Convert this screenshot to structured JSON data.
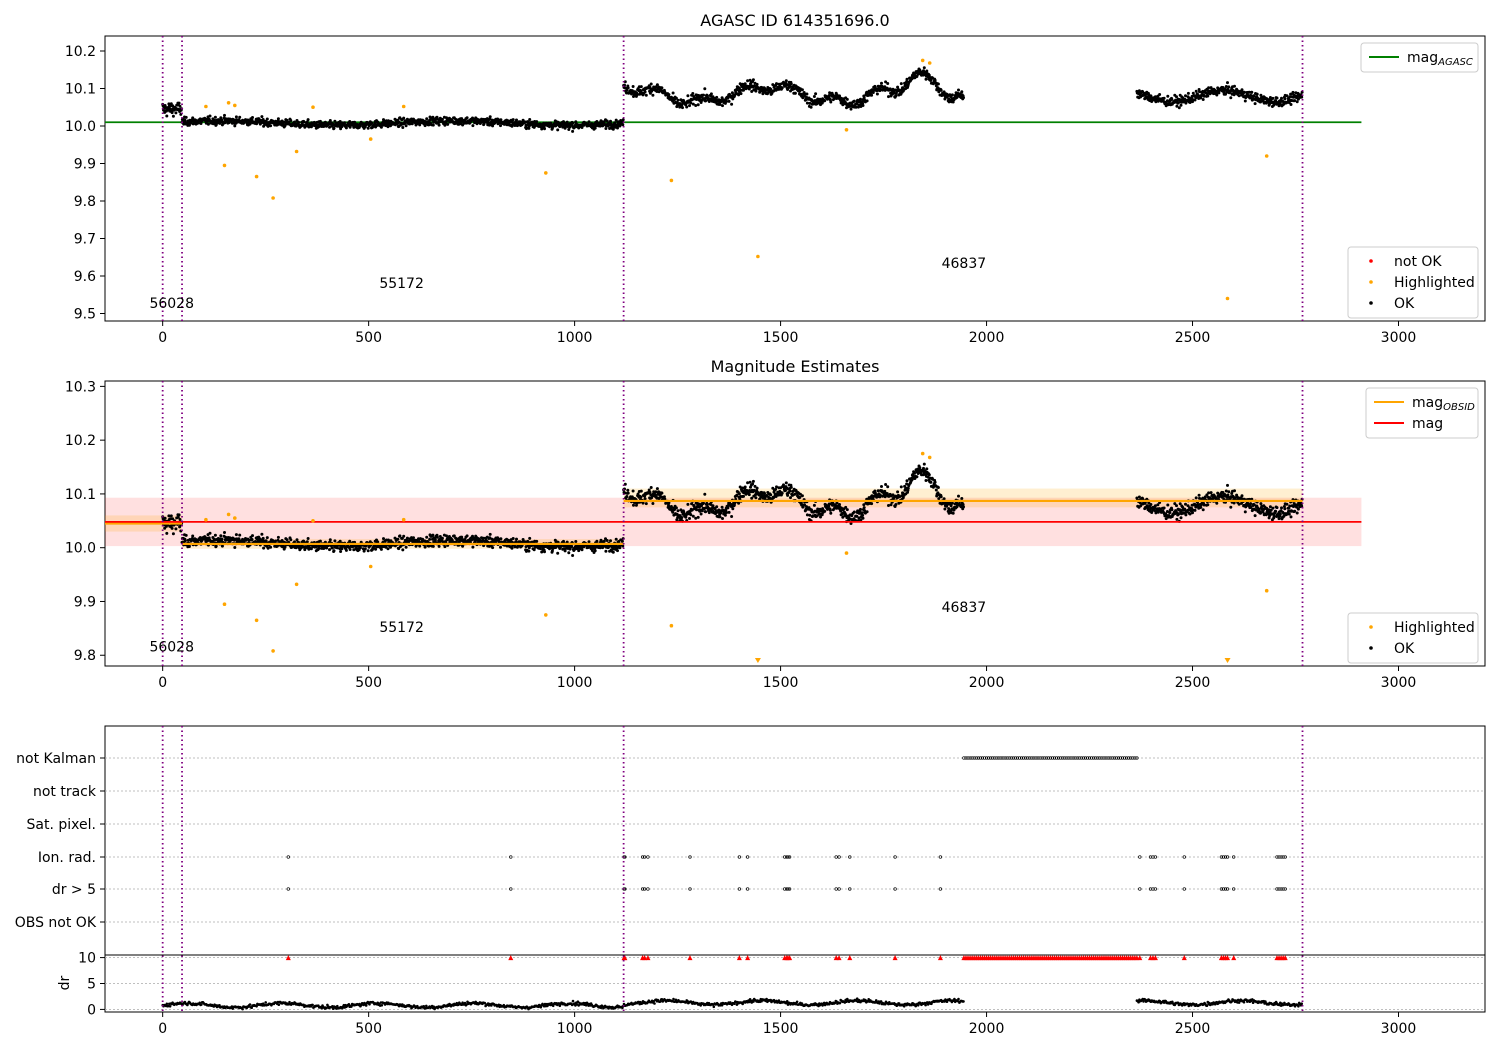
{
  "chart_data": [
    {
      "panel": "agasc",
      "type": "scatter",
      "title": "AGASC ID 614351696.0",
      "xlim": [
        -140,
        3210
      ],
      "ylim": [
        9.48,
        10.24
      ],
      "xticks": [
        0,
        500,
        1000,
        1500,
        2000,
        2500,
        3000
      ],
      "yticks": [
        9.5,
        9.6,
        9.7,
        9.8,
        9.9,
        10.0,
        10.1,
        10.2
      ],
      "ytick_labels": [
        "9.5",
        "9.6",
        "9.7",
        "9.8",
        "9.9",
        "10.0",
        "10.1",
        "10.2"
      ],
      "obsid_boundaries": [
        0,
        47,
        1119,
        2767
      ],
      "obsid_labels": [
        {
          "text": "56028",
          "x": 22,
          "y": 9.515
        },
        {
          "text": "55172",
          "x": 580,
          "y": 9.568
        },
        {
          "text": "46837",
          "x": 1945,
          "y": 9.622
        }
      ],
      "mag_agasc": {
        "value": 10.01,
        "x": [
          -140,
          2910
        ],
        "color": "#008000"
      },
      "legend_top": [
        {
          "label": "mag",
          "sub": "AGASC",
          "color": "#008000",
          "kind": "line"
        }
      ],
      "legend_bottom": [
        {
          "label": "not OK",
          "color": "#ff0000",
          "kind": "dot"
        },
        {
          "label": "Highlighted",
          "color": "#ffa500",
          "kind": "dot"
        },
        {
          "label": "OK",
          "color": "#000000",
          "kind": "dot"
        }
      ],
      "highlighted": [
        {
          "x": 105,
          "y": 10.052
        },
        {
          "x": 150,
          "y": 9.895
        },
        {
          "x": 160,
          "y": 10.062
        },
        {
          "x": 175,
          "y": 10.055
        },
        {
          "x": 228,
          "y": 9.865
        },
        {
          "x": 268,
          "y": 9.808
        },
        {
          "x": 325,
          "y": 9.932
        },
        {
          "x": 365,
          "y": 10.05
        },
        {
          "x": 505,
          "y": 9.965
        },
        {
          "x": 585,
          "y": 10.052
        },
        {
          "x": 930,
          "y": 9.875
        },
        {
          "x": 1235,
          "y": 9.855
        },
        {
          "x": 1445,
          "y": 9.652
        },
        {
          "x": 1660,
          "y": 9.99
        },
        {
          "x": 1845,
          "y": 10.175
        },
        {
          "x": 1862,
          "y": 10.168
        },
        {
          "x": 2585,
          "y": 9.54
        },
        {
          "x": 2680,
          "y": 9.92
        }
      ]
    },
    {
      "panel": "estimates",
      "type": "scatter",
      "title": "Magnitude Estimates",
      "xlim": [
        -140,
        3210
      ],
      "ylim": [
        9.78,
        10.31
      ],
      "xticks": [
        0,
        500,
        1000,
        1500,
        2000,
        2500,
        3000
      ],
      "yticks": [
        9.8,
        9.9,
        10.0,
        10.1,
        10.2,
        10.3
      ],
      "ytick_labels": [
        "9.8",
        "9.9",
        "10.0",
        "10.1",
        "10.2",
        "10.3"
      ],
      "obsid_boundaries": [
        0,
        47,
        1119,
        2767
      ],
      "obsid_labels": [
        {
          "text": "56028",
          "x": 22,
          "y": 9.807
        },
        {
          "text": "55172",
          "x": 580,
          "y": 9.843
        },
        {
          "text": "46837",
          "x": 1945,
          "y": 9.88
        }
      ],
      "mag": {
        "value": 10.048,
        "band": [
          10.003,
          10.093
        ],
        "x": [
          -140,
          2910
        ],
        "color": "#ff0000"
      },
      "mag_obsid": [
        {
          "x": [
            -140,
            47
          ],
          "value": 10.045,
          "band": [
            10.03,
            10.06
          ]
        },
        {
          "x": [
            47,
            1119
          ],
          "value": 10.007,
          "band": [
            9.998,
            10.016
          ]
        },
        {
          "x": [
            1119,
            2767
          ],
          "value": 10.087,
          "band": [
            10.075,
            10.11
          ]
        }
      ],
      "legend_top": [
        {
          "label": "mag",
          "sub": "OBSID",
          "color": "#ffa500",
          "kind": "line"
        },
        {
          "label": "mag",
          "sub": "",
          "color": "#ff0000",
          "kind": "line"
        }
      ],
      "legend_bottom": [
        {
          "label": "Highlighted",
          "color": "#ffa500",
          "kind": "dot"
        },
        {
          "label": "OK",
          "color": "#000000",
          "kind": "dot"
        }
      ],
      "highlighted": [
        {
          "x": 105,
          "y": 10.052
        },
        {
          "x": 150,
          "y": 9.895
        },
        {
          "x": 160,
          "y": 10.062
        },
        {
          "x": 175,
          "y": 10.055
        },
        {
          "x": 228,
          "y": 9.865
        },
        {
          "x": 268,
          "y": 9.808
        },
        {
          "x": 325,
          "y": 9.932
        },
        {
          "x": 365,
          "y": 10.05
        },
        {
          "x": 505,
          "y": 9.965
        },
        {
          "x": 585,
          "y": 10.052
        },
        {
          "x": 930,
          "y": 9.875
        },
        {
          "x": 1235,
          "y": 9.855
        },
        {
          "x": 1660,
          "y": 9.99
        },
        {
          "x": 1845,
          "y": 10.175
        },
        {
          "x": 1862,
          "y": 10.168
        },
        {
          "x": 2680,
          "y": 9.92
        }
      ],
      "below_range_markers": [
        1445,
        2585
      ]
    },
    {
      "panel": "flags",
      "type": "scatter",
      "xlim": [
        -140,
        3210
      ],
      "xticks": [
        0,
        500,
        1000,
        1500,
        2000,
        2500,
        3000
      ],
      "obsid_boundaries": [
        0,
        47,
        1119,
        2767
      ],
      "flag_rows": [
        "not Kalman",
        "not track",
        "Sat. pixel.",
        "Ion. rad.",
        "dr > 5",
        "OBS not OK"
      ],
      "not_kalman_range": [
        1945,
        2365
      ],
      "flag_times": [
        305,
        845,
        1120,
        1122,
        1165,
        1170,
        1178,
        1280,
        1400,
        1420,
        1510,
        1515,
        1518,
        1522,
        1635,
        1642,
        1668,
        1778,
        1888,
        2372,
        2398,
        2404,
        2410,
        2480,
        2570,
        2575,
        2580,
        2585,
        2600,
        2705,
        2710,
        2715,
        2720,
        2725
      ],
      "dr_axis": {
        "ylabel": "dr",
        "ylim": [
          -0.5,
          10.5
        ],
        "yticks": [
          0,
          5,
          10
        ],
        "ytick_labels": [
          "0",
          "5",
          "10"
        ],
        "threshold": 5
      }
    }
  ]
}
